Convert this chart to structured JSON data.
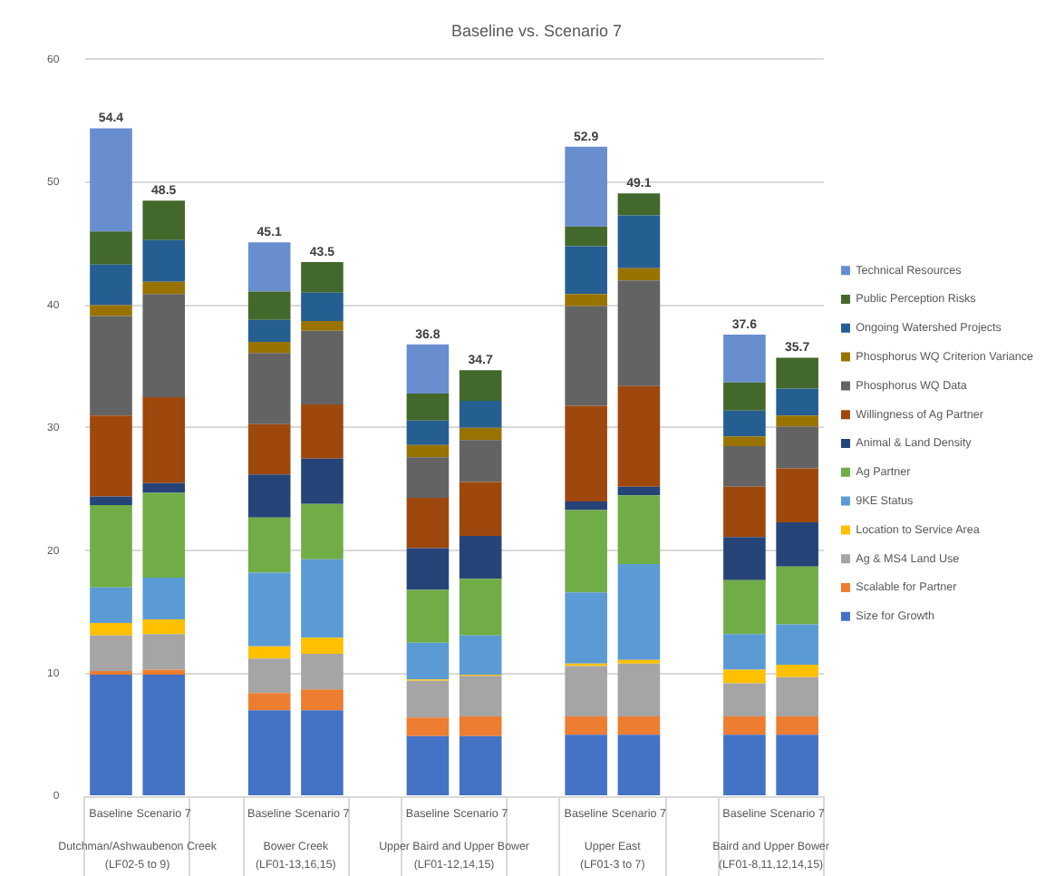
{
  "chart_data": {
    "type": "bar",
    "title": "Baseline vs. Scenario 7",
    "stacked": true,
    "legend": "right",
    "grid": "y",
    "categories": [
      "Baseline",
      "Scenario 7",
      null,
      "Baseline",
      "Scenario 7",
      null,
      "Baseline",
      "Scenario 7",
      null,
      "Baseline",
      "Scenario 7",
      null,
      "Baseline",
      "Scenario 7"
    ],
    "ylim": [
      0,
      60
    ],
    "yticks": [
      0,
      10,
      20,
      30,
      40,
      50,
      60
    ],
    "series": [
      {
        "name": "Size for Growth",
        "color": "#4472c4",
        "values": [
          9.9,
          9.9,
          null,
          7.0,
          7.0,
          null,
          4.9,
          4.9,
          null,
          5.0,
          5.0,
          null,
          5.0,
          5.0
        ]
      },
      {
        "name": "Scalable for Partner",
        "color": "#ed7d31",
        "values": [
          0.3,
          0.4,
          null,
          1.4,
          1.7,
          null,
          1.5,
          1.6,
          null,
          1.5,
          1.5,
          null,
          1.5,
          1.5
        ]
      },
      {
        "name": "Ag & MS4 Land Use",
        "color": "#a5a5a5",
        "values": [
          2.9,
          2.9,
          null,
          2.8,
          2.9,
          null,
          3.0,
          3.3,
          null,
          4.1,
          4.3,
          null,
          2.7,
          3.2
        ]
      },
      {
        "name": "Location to Service Area",
        "color": "#ffc000",
        "values": [
          1.0,
          1.2,
          null,
          1.0,
          1.3,
          null,
          0.1,
          0.1,
          null,
          0.2,
          0.3,
          null,
          1.1,
          1.0
        ]
      },
      {
        "name": "9KE Status",
        "color": "#5b9bd5",
        "values": [
          2.9,
          3.4,
          null,
          6.0,
          6.4,
          null,
          3.0,
          3.2,
          null,
          5.8,
          7.8,
          null,
          2.9,
          3.3
        ]
      },
      {
        "name": "Ag Partner",
        "color": "#70ad47",
        "values": [
          6.7,
          6.9,
          null,
          4.5,
          4.5,
          null,
          4.3,
          4.6,
          null,
          6.7,
          5.6,
          null,
          4.4,
          4.7
        ]
      },
      {
        "name": "Animal & Land Density",
        "color": "#264478",
        "values": [
          0.7,
          0.8,
          null,
          3.5,
          3.7,
          null,
          3.4,
          3.5,
          null,
          0.7,
          0.7,
          null,
          3.5,
          3.6
        ]
      },
      {
        "name": "Willingness of Ag Partner",
        "color": "#9e480e",
        "values": [
          6.6,
          7.0,
          null,
          4.1,
          4.4,
          null,
          4.1,
          4.4,
          null,
          7.8,
          8.2,
          null,
          4.1,
          4.4
        ]
      },
      {
        "name": "Phosphorus WQ Data",
        "color": "#636363",
        "values": [
          8.1,
          8.4,
          null,
          5.8,
          6.0,
          null,
          3.3,
          3.4,
          null,
          8.1,
          8.6,
          null,
          3.3,
          3.4
        ]
      },
      {
        "name": "Phosphorus WQ Criterion Variance",
        "color": "#997300",
        "values": [
          0.9,
          1.0,
          null,
          0.9,
          0.8,
          null,
          1.0,
          1.0,
          null,
          1.0,
          1.0,
          null,
          0.8,
          0.9
        ]
      },
      {
        "name": "Ongoing Watershed Projects",
        "color": "#255e91",
        "values": [
          3.3,
          3.4,
          null,
          1.8,
          2.3,
          null,
          2.0,
          2.2,
          null,
          3.9,
          4.3,
          null,
          2.1,
          2.2
        ]
      },
      {
        "name": "Public Perception Risks",
        "color": "#43682b",
        "values": [
          2.7,
          3.2,
          null,
          2.3,
          2.5,
          null,
          2.2,
          2.5,
          null,
          1.6,
          1.8,
          null,
          2.3,
          2.5
        ]
      },
      {
        "name": "Technical Resources",
        "color": "#698ed0",
        "values": [
          8.4,
          0,
          null,
          4.0,
          0,
          null,
          4.0,
          0,
          null,
          6.5,
          0,
          null,
          3.9,
          0
        ]
      }
    ],
    "totals": [
      "54.4",
      "48.5",
      null,
      "45.1",
      "43.5",
      null,
      "36.8",
      "34.7",
      null,
      "52.9",
      "49.1",
      null,
      "37.6",
      "35.7"
    ],
    "annotations": [
      "Dutchman/Ashwaubenon Creek\n(LF02-5 to 9)",
      "Bower Creek\n(LF01-13,16,15)",
      "Upper Baird and Upper Bower\n(LF01-12,14,15)",
      "Upper East\n(LF01-3 to 7)",
      "Baird and Upper Bower\n(LF01-8,11,12,14,15)"
    ]
  }
}
